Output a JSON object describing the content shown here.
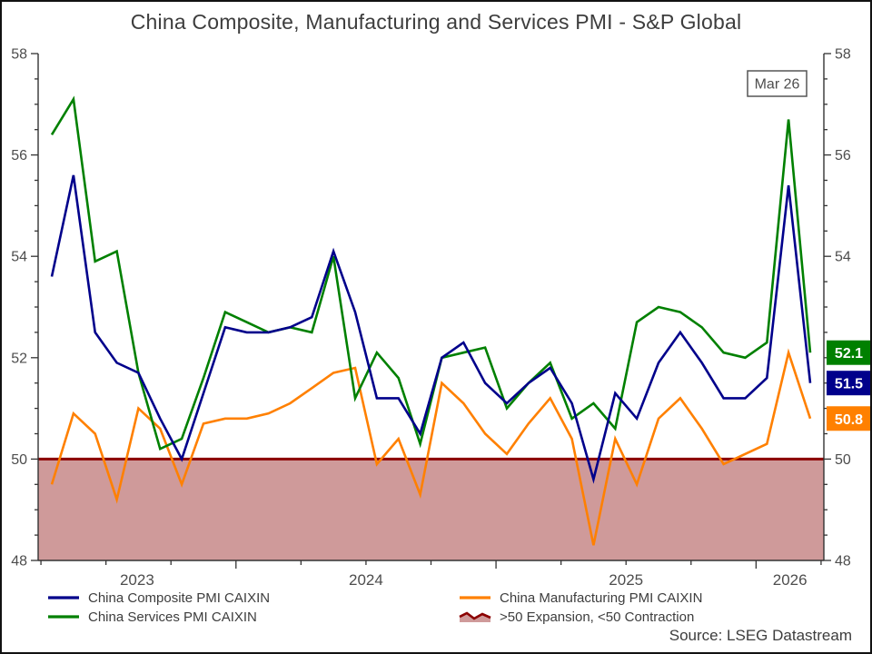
{
  "title": "China Composite, Manufacturing and Services PMI - S&P Global",
  "annotation_box": {
    "text": "Mar 26"
  },
  "source_text": "Source: LSEG Datastream",
  "colors": {
    "composite": "#00008b",
    "services": "#008000",
    "manufacturing": "#ff8000",
    "threshold_line": "#8b0000",
    "contraction_shade": "#cf9a9a",
    "axis_text": "#4d4d4d",
    "title_text": "#3d3d3d"
  },
  "legend": {
    "col1": [
      {
        "label": "China Composite PMI CAIXIN",
        "swatch": "line",
        "color": "#00008b"
      },
      {
        "label": "China Services PMI CAIXIN",
        "swatch": "line",
        "color": "#008000"
      }
    ],
    "col2": [
      {
        "label": "China Manufacturing PMI CAIXIN",
        "swatch": "line",
        "color": "#ff8000"
      },
      {
        "label": ">50 Expansion, <50 Contraction",
        "swatch": "zone",
        "color": "#8b0000",
        "fill": "#cf9a9a"
      }
    ]
  },
  "value_labels": [
    {
      "text": "52.1",
      "series": "services",
      "color": "#008000"
    },
    {
      "text": "51.5",
      "series": "composite",
      "color": "#00008b"
    },
    {
      "text": "50.8",
      "series": "manufacturing",
      "color": "#ff8000"
    }
  ],
  "chart_data": {
    "type": "line",
    "frequency": "monthly",
    "categories": [
      "Apr 2023",
      "May 2023",
      "Jun 2023",
      "Jul 2023",
      "Aug 2023",
      "Sep 2023",
      "Oct 2023",
      "Nov 2023",
      "Dec 2023",
      "Jan 2024",
      "Feb 2024",
      "Mar 2024",
      "Apr 2024",
      "May 2024",
      "Jun 2024",
      "Jul 2024",
      "Aug 2024",
      "Sep 2024",
      "Oct 2024",
      "Nov 2024",
      "Dec 2024",
      "Jan 2025",
      "Feb 2025",
      "Mar 2025",
      "Apr 2025",
      "May 2025",
      "Jun 2025",
      "Jul 2025",
      "Aug 2025",
      "Sep 2025",
      "Oct 2025",
      "Nov 2025",
      "Dec 2025",
      "Jan 2026",
      "Feb 2026",
      "Mar 2026"
    ],
    "series": [
      {
        "name": "China Composite PMI CAIXIN",
        "color": "#00008b",
        "values": [
          53.6,
          55.6,
          52.5,
          51.9,
          51.7,
          50.8,
          50.0,
          51.3,
          52.6,
          52.5,
          52.5,
          52.6,
          52.8,
          54.1,
          52.9,
          51.2,
          51.2,
          50.5,
          52.0,
          52.3,
          51.5,
          51.1,
          51.5,
          51.8,
          51.1,
          49.6,
          51.3,
          50.8,
          51.9,
          52.5,
          51.9,
          51.2,
          51.2,
          51.6,
          55.4,
          51.5
        ]
      },
      {
        "name": "China Services PMI CAIXIN",
        "color": "#008000",
        "values": [
          56.4,
          57.1,
          53.9,
          54.1,
          51.7,
          50.2,
          50.4,
          51.6,
          52.9,
          52.7,
          52.5,
          52.6,
          52.5,
          54.0,
          51.2,
          52.1,
          51.6,
          50.3,
          52.0,
          52.1,
          52.2,
          51.0,
          51.5,
          51.9,
          50.8,
          51.1,
          50.6,
          52.7,
          53.0,
          52.9,
          52.6,
          52.1,
          52.0,
          52.3,
          56.7,
          52.1
        ]
      },
      {
        "name": "China Manufacturing PMI CAIXIN",
        "color": "#ff8000",
        "values": [
          49.5,
          50.9,
          50.5,
          49.2,
          51.0,
          50.6,
          49.5,
          50.7,
          50.8,
          50.8,
          50.9,
          51.1,
          51.4,
          51.7,
          51.8,
          49.9,
          50.4,
          49.3,
          51.5,
          51.1,
          50.5,
          50.1,
          50.7,
          51.2,
          50.4,
          48.3,
          50.4,
          49.5,
          50.8,
          51.2,
          50.6,
          49.9,
          50.1,
          50.3,
          52.1,
          50.8
        ]
      }
    ],
    "ylim": [
      48,
      58
    ],
    "yticks": [
      48,
      50,
      52,
      54,
      56,
      58
    ],
    "minor_tick_step": 0.5,
    "threshold": 50,
    "year_labels": [
      "2023",
      "2024",
      "2025",
      "2026"
    ],
    "grid": "off",
    "legend_position": "bottom",
    "last_point_label": "Mar 26"
  }
}
